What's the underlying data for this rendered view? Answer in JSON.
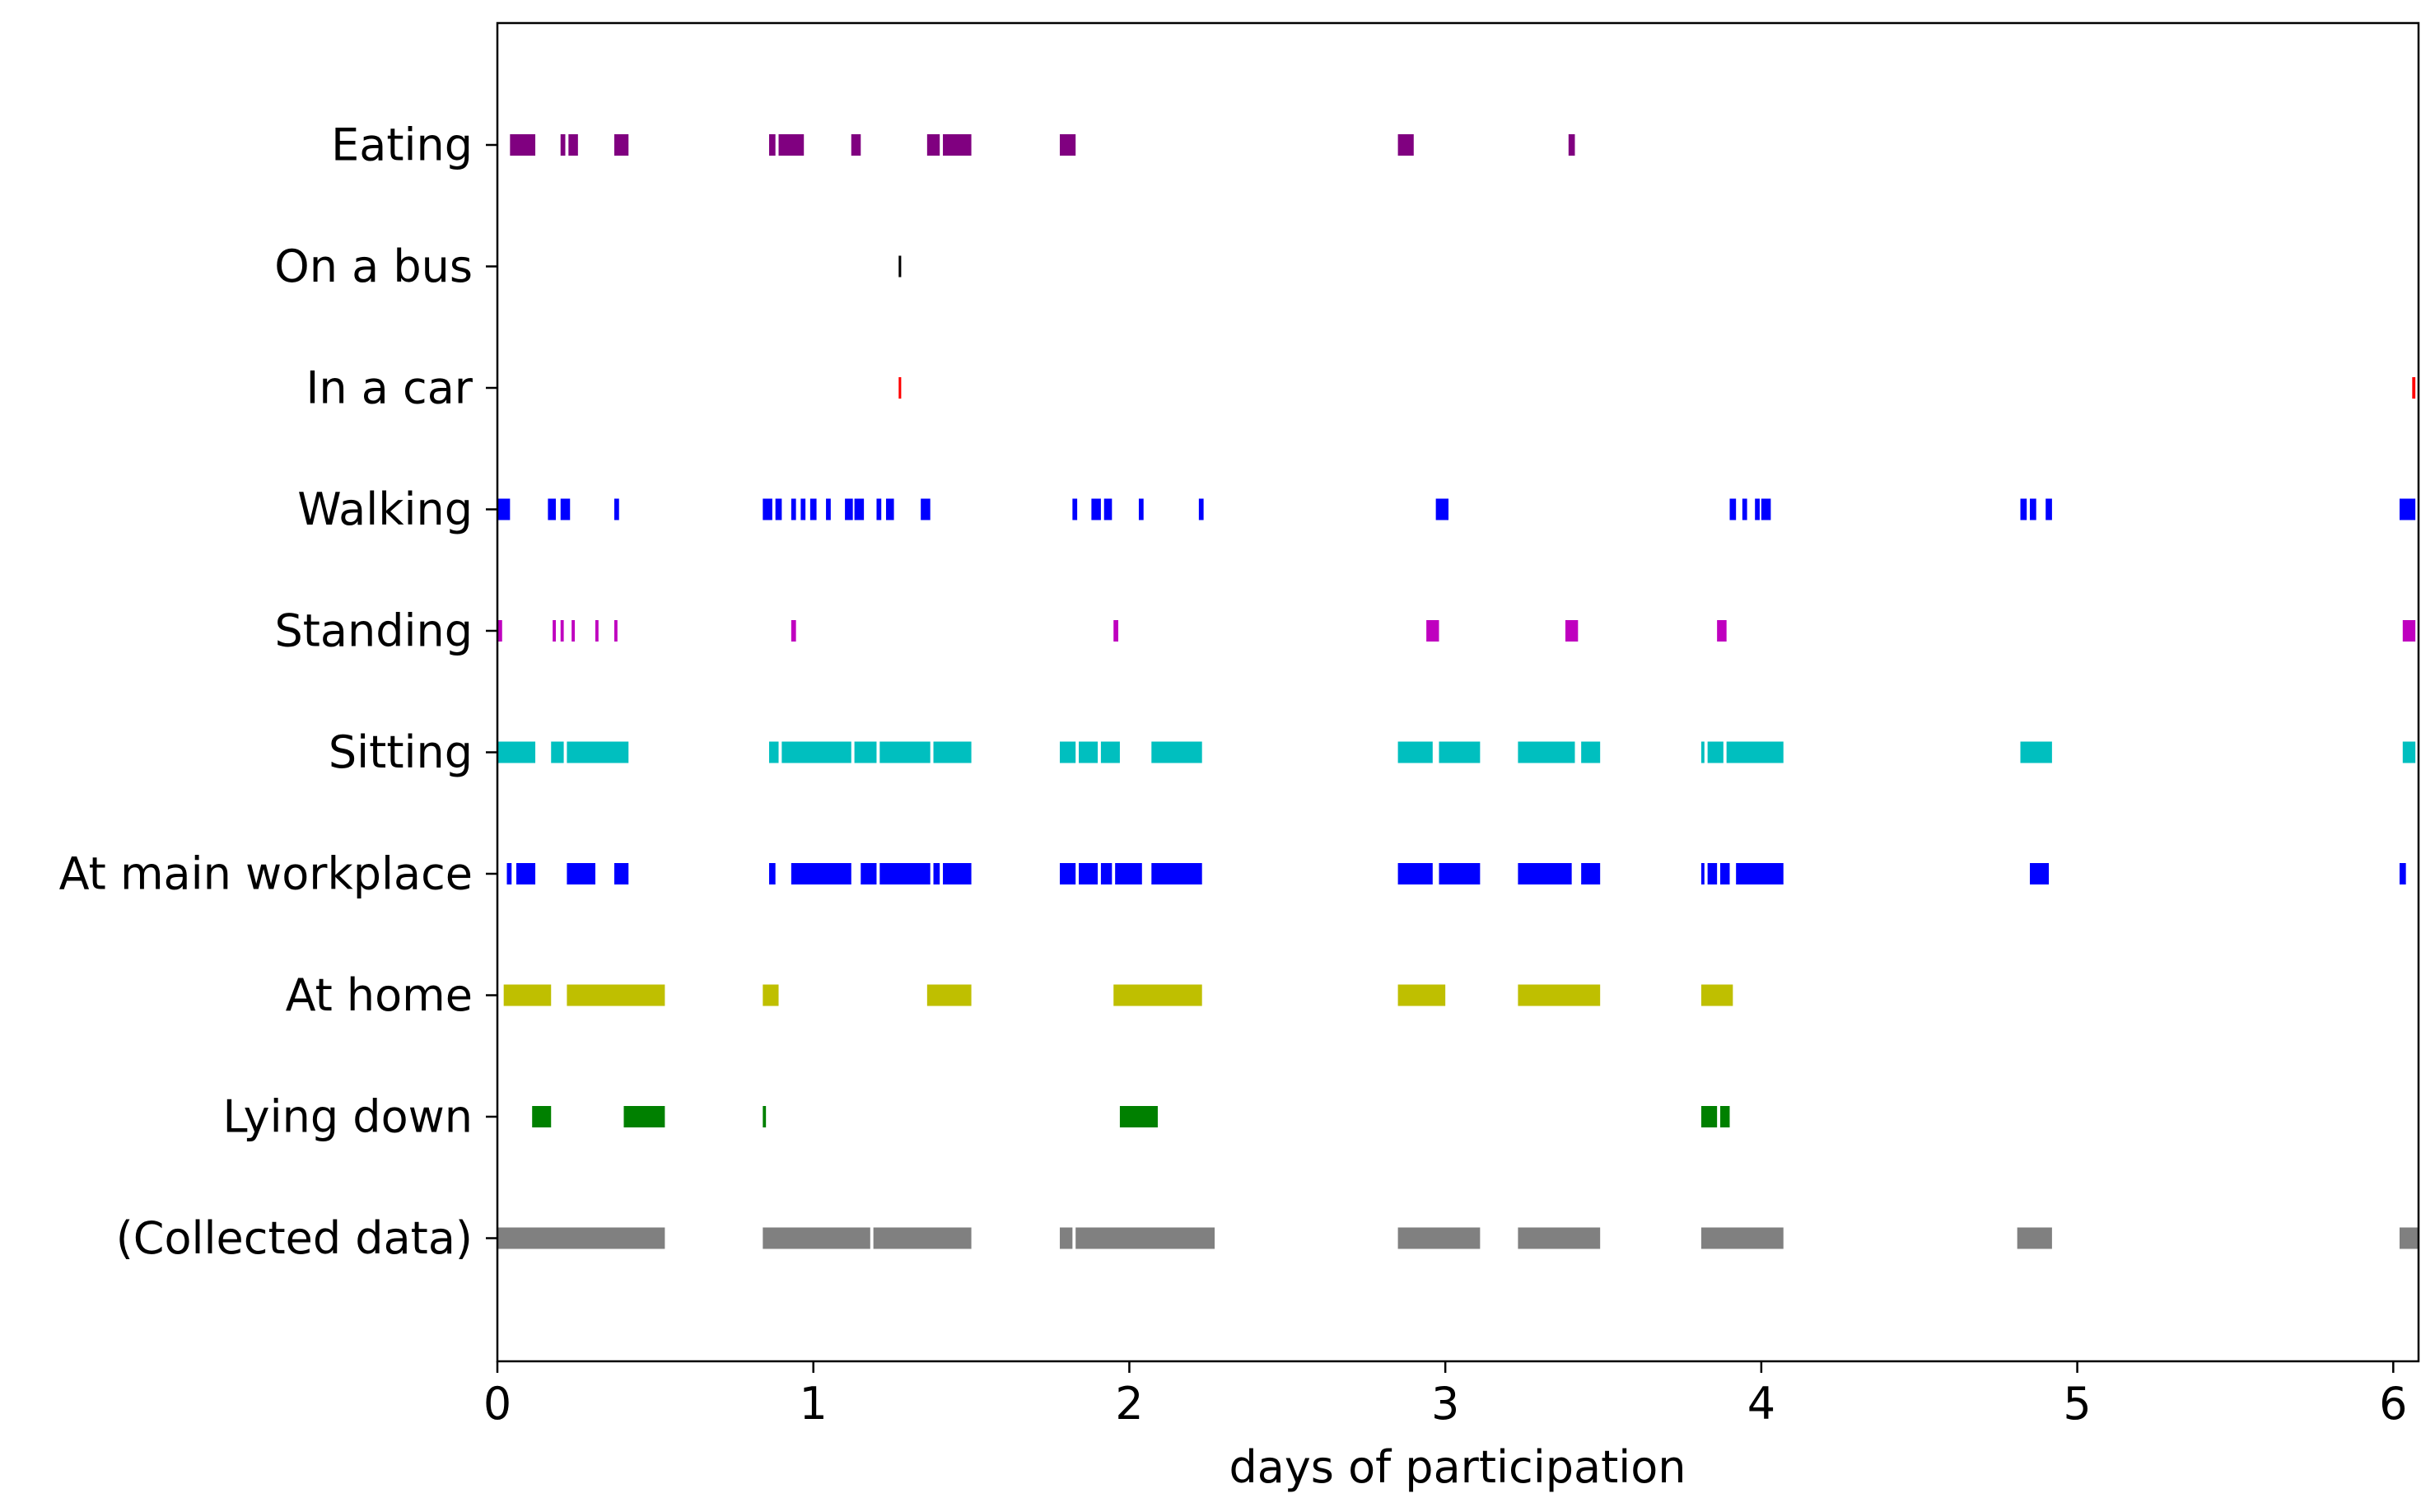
{
  "chart_data": {
    "type": "timeline",
    "title": "",
    "xlabel": "days of participation",
    "ylabel": "",
    "xlim": [
      0,
      6.08
    ],
    "x_ticks": [
      0,
      1,
      2,
      3,
      4,
      5,
      6
    ],
    "grid": false,
    "legend": "none",
    "categories": [
      "Eating",
      "On a bus",
      "In a car",
      "Walking",
      "Standing",
      "Sitting",
      "At main workplace",
      "At home",
      "Lying down",
      "(Collected data)"
    ],
    "series": [
      {
        "category": "Eating",
        "color": "#800080",
        "intervals": [
          [
            0.04,
            0.12
          ],
          [
            0.2,
            0.215
          ],
          [
            0.225,
            0.255
          ],
          [
            0.37,
            0.415
          ],
          [
            0.86,
            0.88
          ],
          [
            0.89,
            0.97
          ],
          [
            1.12,
            1.15
          ],
          [
            1.36,
            1.4
          ],
          [
            1.41,
            1.5
          ],
          [
            1.78,
            1.83
          ],
          [
            2.85,
            2.9
          ],
          [
            3.39,
            3.41
          ]
        ]
      },
      {
        "category": "On a bus",
        "color": "#000000",
        "intervals": [
          [
            1.27,
            1.278
          ]
        ]
      },
      {
        "category": "In a car",
        "color": "#ff0000",
        "intervals": [
          [
            1.27,
            1.278
          ],
          [
            6.06,
            6.07
          ]
        ]
      },
      {
        "category": "Walking",
        "color": "#0000ff",
        "intervals": [
          [
            0,
            0.04
          ],
          [
            0.16,
            0.185
          ],
          [
            0.2,
            0.23
          ],
          [
            0.37,
            0.385
          ],
          [
            0.84,
            0.87
          ],
          [
            0.88,
            0.9
          ],
          [
            0.93,
            0.945
          ],
          [
            0.96,
            0.975
          ],
          [
            0.99,
            1.01
          ],
          [
            1.04,
            1.055
          ],
          [
            1.1,
            1.125
          ],
          [
            1.13,
            1.16
          ],
          [
            1.2,
            1.215
          ],
          [
            1.23,
            1.255
          ],
          [
            1.34,
            1.37
          ],
          [
            1.82,
            1.835
          ],
          [
            1.88,
            1.91
          ],
          [
            1.92,
            1.945
          ],
          [
            2.03,
            2.045
          ],
          [
            2.22,
            2.235
          ],
          [
            2.97,
            3.01
          ],
          [
            3.9,
            3.92
          ],
          [
            3.94,
            3.955
          ],
          [
            3.98,
            3.995
          ],
          [
            4.0,
            4.03
          ],
          [
            4.82,
            4.84
          ],
          [
            4.85,
            4.87
          ],
          [
            4.9,
            4.92
          ],
          [
            6.02,
            6.07
          ]
        ]
      },
      {
        "category": "Standing",
        "color": "#bf00bf",
        "intervals": [
          [
            0,
            0.015
          ],
          [
            0.175,
            0.185
          ],
          [
            0.2,
            0.21
          ],
          [
            0.235,
            0.245
          ],
          [
            0.31,
            0.32
          ],
          [
            0.37,
            0.38
          ],
          [
            0.93,
            0.945
          ],
          [
            1.95,
            1.965
          ],
          [
            2.94,
            2.98
          ],
          [
            3.38,
            3.42
          ],
          [
            3.86,
            3.89
          ],
          [
            6.03,
            6.07
          ]
        ]
      },
      {
        "category": "Sitting",
        "color": "#00bfbf",
        "intervals": [
          [
            0,
            0.12
          ],
          [
            0.17,
            0.21
          ],
          [
            0.22,
            0.415
          ],
          [
            0.86,
            0.89
          ],
          [
            0.9,
            1.12
          ],
          [
            1.13,
            1.2
          ],
          [
            1.21,
            1.37
          ],
          [
            1.38,
            1.5
          ],
          [
            1.78,
            1.83
          ],
          [
            1.84,
            1.9
          ],
          [
            1.91,
            1.97
          ],
          [
            2.07,
            2.23
          ],
          [
            2.85,
            2.96
          ],
          [
            2.98,
            3.11
          ],
          [
            3.23,
            3.41
          ],
          [
            3.43,
            3.49
          ],
          [
            3.81,
            3.82
          ],
          [
            3.83,
            3.88
          ],
          [
            3.89,
            4.07
          ],
          [
            4.82,
            4.92
          ],
          [
            6.03,
            6.07
          ]
        ]
      },
      {
        "category": "At main workplace",
        "color": "#0000ff",
        "intervals": [
          [
            0.03,
            0.045
          ],
          [
            0.06,
            0.12
          ],
          [
            0.22,
            0.31
          ],
          [
            0.37,
            0.415
          ],
          [
            0.86,
            0.88
          ],
          [
            0.93,
            1.12
          ],
          [
            1.15,
            1.2
          ],
          [
            1.21,
            1.37
          ],
          [
            1.38,
            1.4
          ],
          [
            1.41,
            1.5
          ],
          [
            1.78,
            1.83
          ],
          [
            1.84,
            1.9
          ],
          [
            1.91,
            1.945
          ],
          [
            1.955,
            2.04
          ],
          [
            2.07,
            2.23
          ],
          [
            2.85,
            2.96
          ],
          [
            2.98,
            3.11
          ],
          [
            3.23,
            3.4
          ],
          [
            3.43,
            3.49
          ],
          [
            3.81,
            3.82
          ],
          [
            3.83,
            3.86
          ],
          [
            3.87,
            3.9
          ],
          [
            3.92,
            4.07
          ],
          [
            4.85,
            4.91
          ],
          [
            6.02,
            6.04
          ]
        ]
      },
      {
        "category": "At home",
        "color": "#bfbf00",
        "intervals": [
          [
            0.02,
            0.17
          ],
          [
            0.22,
            0.53
          ],
          [
            0.84,
            0.89
          ],
          [
            1.36,
            1.5
          ],
          [
            1.95,
            2.23
          ],
          [
            2.85,
            3.0
          ],
          [
            3.23,
            3.49
          ],
          [
            3.81,
            3.91
          ]
        ]
      },
      {
        "category": "Lying down",
        "color": "#008000",
        "intervals": [
          [
            0.11,
            0.17
          ],
          [
            0.4,
            0.53
          ],
          [
            0.84,
            0.85
          ],
          [
            1.97,
            2.09
          ],
          [
            3.81,
            3.86
          ],
          [
            3.87,
            3.9
          ]
        ]
      },
      {
        "category": "(Collected data)",
        "color": "#808080",
        "intervals": [
          [
            0,
            0.53
          ],
          [
            0.84,
            1.18
          ],
          [
            1.19,
            1.5
          ],
          [
            1.78,
            1.82
          ],
          [
            1.83,
            2.27
          ],
          [
            2.85,
            3.11
          ],
          [
            3.23,
            3.49
          ],
          [
            3.81,
            4.07
          ],
          [
            4.81,
            4.92
          ],
          [
            6.02,
            6.08
          ]
        ]
      }
    ]
  }
}
